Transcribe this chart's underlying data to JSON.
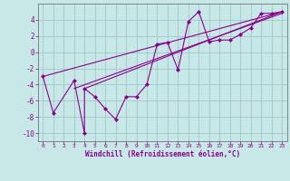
{
  "background_color": "#c8e8e8",
  "grid_color": "#a0c8c8",
  "line_color": "#8b008b",
  "marker_color": "#8b008b",
  "xlabel": "Windchill (Refroidissement éolien,°C)",
  "xlim": [
    -0.5,
    23.5
  ],
  "ylim": [
    -11,
    6
  ],
  "yticks": [
    -10,
    -8,
    -6,
    -4,
    -2,
    0,
    2,
    4
  ],
  "xticks": [
    0,
    1,
    2,
    3,
    4,
    5,
    6,
    7,
    8,
    9,
    10,
    11,
    12,
    13,
    14,
    15,
    16,
    17,
    18,
    19,
    20,
    21,
    22,
    23
  ],
  "series": [
    [
      0,
      -3
    ],
    [
      1,
      -7.5
    ],
    [
      3,
      -3.5
    ],
    [
      4,
      -10
    ],
    [
      4,
      -4.5
    ],
    [
      5,
      -5.5
    ],
    [
      6,
      -7
    ],
    [
      7,
      -8.3
    ],
    [
      8,
      -5.5
    ],
    [
      9,
      -5.5
    ],
    [
      10,
      -4
    ],
    [
      11,
      1
    ],
    [
      12,
      1.2
    ],
    [
      13,
      -2.2
    ],
    [
      14,
      3.8
    ],
    [
      15,
      5
    ],
    [
      16,
      1.3
    ],
    [
      17,
      1.5
    ],
    [
      18,
      1.5
    ],
    [
      19,
      2.2
    ],
    [
      20,
      3
    ],
    [
      21,
      4.8
    ],
    [
      22,
      4.8
    ],
    [
      23,
      5
    ]
  ],
  "line1": [
    [
      0,
      -3
    ],
    [
      23,
      5
    ]
  ],
  "line2": [
    [
      3,
      -4.5
    ],
    [
      23,
      4.8
    ]
  ],
  "line3": [
    [
      4,
      -4.5
    ],
    [
      23,
      5
    ]
  ]
}
